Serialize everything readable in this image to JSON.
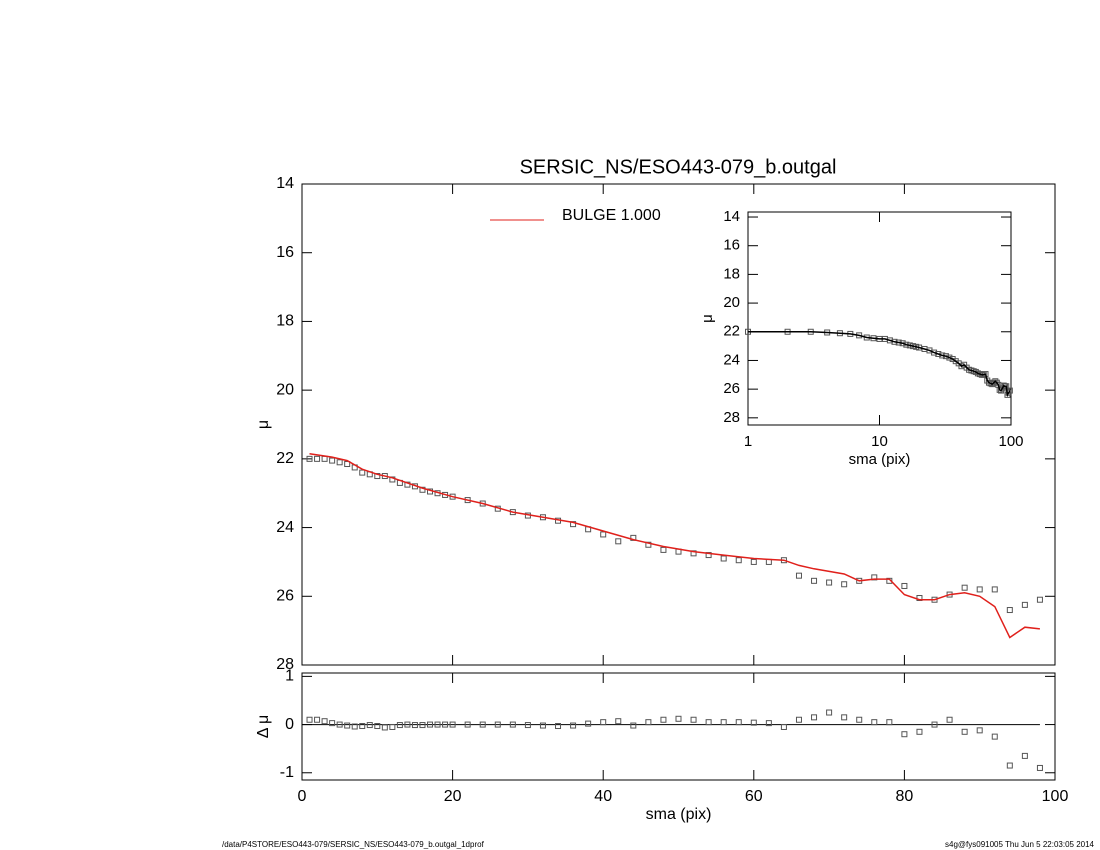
{
  "chart_data": [
    {
      "type": "scatter",
      "title": "SERSIC_NS/ESO443-079_b.outgal",
      "ylabel": "μ",
      "xlim": [
        0,
        100
      ],
      "ylim": [
        28,
        14
      ],
      "yticks": [
        14,
        16,
        18,
        20,
        22,
        24,
        26,
        28
      ],
      "legend": "top",
      "series": [
        {
          "color": "#555555",
          "style": "square",
          "x": [
            1,
            2,
            3,
            4,
            5,
            6,
            7,
            8,
            9,
            10,
            11,
            12,
            13,
            14,
            15,
            16,
            17,
            18,
            19,
            20,
            22,
            24,
            26,
            28,
            30,
            32,
            34,
            36,
            38,
            40,
            42,
            44,
            46,
            48,
            50,
            52,
            54,
            56,
            58,
            60,
            62,
            64,
            66,
            68,
            70,
            72,
            74,
            76,
            78,
            80,
            82,
            84,
            86,
            88,
            90,
            92,
            94,
            96,
            98
          ],
          "values": [
            22.0,
            22.0,
            22.0,
            22.05,
            22.1,
            22.15,
            22.25,
            22.4,
            22.45,
            22.5,
            22.5,
            22.6,
            22.7,
            22.75,
            22.8,
            22.9,
            22.95,
            23.0,
            23.05,
            23.1,
            23.2,
            23.3,
            23.45,
            23.55,
            23.65,
            23.7,
            23.8,
            23.9,
            24.05,
            24.2,
            24.4,
            24.3,
            24.5,
            24.65,
            24.7,
            24.75,
            24.8,
            24.9,
            24.95,
            25.0,
            25.0,
            24.95,
            25.4,
            25.55,
            25.6,
            25.65,
            25.55,
            25.45,
            25.55,
            25.7,
            26.05,
            26.1,
            25.95,
            25.75,
            25.8,
            25.8,
            26.4,
            26.25,
            26.1
          ]
        },
        {
          "name": "BULGE  1.000",
          "color": "#e0201b",
          "style": "line",
          "x": [
            1,
            4,
            6,
            8,
            10,
            12,
            16,
            20,
            24,
            28,
            32,
            36,
            40,
            44,
            48,
            52,
            56,
            60,
            64,
            66,
            68,
            72,
            74,
            76,
            78,
            80,
            82,
            84,
            86,
            88,
            90,
            92,
            94,
            96,
            98
          ],
          "values": [
            21.85,
            21.95,
            22.05,
            22.3,
            22.45,
            22.55,
            22.85,
            23.1,
            23.3,
            23.55,
            23.7,
            23.85,
            24.1,
            24.35,
            24.55,
            24.7,
            24.8,
            24.9,
            24.95,
            25.1,
            25.2,
            25.35,
            25.55,
            25.5,
            25.5,
            25.95,
            26.1,
            26.1,
            25.95,
            25.9,
            26.0,
            26.3,
            27.2,
            26.9,
            26.95
          ]
        }
      ]
    },
    {
      "type": "scatter",
      "xlabel": "sma (pix)",
      "ylabel": "Δ μ",
      "xlim": [
        0,
        100
      ],
      "xticks": [
        0,
        20,
        40,
        60,
        80,
        100
      ],
      "ylim": [
        -1.15,
        1.07
      ],
      "yticks": [
        -1,
        0,
        1
      ],
      "reference_line": 0,
      "series": [
        {
          "color": "#555555",
          "style": "square",
          "x": [
            1,
            2,
            3,
            4,
            5,
            6,
            7,
            8,
            9,
            10,
            11,
            12,
            13,
            14,
            15,
            16,
            17,
            18,
            19,
            20,
            22,
            24,
            26,
            28,
            30,
            32,
            34,
            36,
            38,
            40,
            42,
            44,
            46,
            48,
            50,
            52,
            54,
            56,
            58,
            60,
            62,
            64,
            66,
            68,
            70,
            72,
            74,
            76,
            78,
            80,
            82,
            84,
            86,
            88,
            90,
            92,
            94,
            96,
            98
          ],
          "values": [
            0.1,
            0.1,
            0.07,
            0.03,
            0,
            -0.02,
            -0.04,
            -0.03,
            -0.01,
            -0.03,
            -0.06,
            -0.05,
            -0.01,
            0,
            -0.01,
            -0.01,
            0,
            0,
            0,
            0,
            0,
            0,
            0,
            0,
            -0.01,
            -0.02,
            -0.03,
            -0.02,
            0.02,
            0.05,
            0.07,
            -0.02,
            0.05,
            0.1,
            0.12,
            0.1,
            0.05,
            0.05,
            0.05,
            0.04,
            0.03,
            -0.05,
            0.1,
            0.15,
            0.25,
            0.15,
            0.1,
            0.05,
            0.05,
            -0.2,
            -0.15,
            0,
            0.1,
            -0.15,
            -0.12,
            -0.25,
            -0.85,
            -0.65,
            -0.9
          ]
        }
      ]
    },
    {
      "type": "line",
      "xlabel": "sma (pix)",
      "ylabel": "μ",
      "xlog": true,
      "xlim": [
        1,
        100
      ],
      "xticks": [
        1,
        10,
        100
      ],
      "ylim": [
        28.5,
        13.65
      ],
      "yticks": [
        14,
        16,
        18,
        20,
        22,
        24,
        26,
        28
      ],
      "series": [
        {
          "color": "#555555",
          "style": "square",
          "x": [
            1,
            2,
            3,
            4,
            5,
            6,
            7,
            8,
            9,
            10,
            11,
            12,
            13,
            14,
            15,
            16,
            17,
            18,
            19,
            20,
            22,
            24,
            26,
            28,
            30,
            32,
            34,
            36,
            38,
            40,
            42,
            44,
            46,
            48,
            50,
            52,
            54,
            56,
            58,
            60,
            62,
            64,
            66,
            68,
            70,
            72,
            74,
            76,
            78,
            80,
            82,
            84,
            86,
            88,
            90,
            92,
            94,
            96,
            98
          ],
          "values": [
            22.0,
            22.0,
            22.0,
            22.05,
            22.1,
            22.15,
            22.25,
            22.4,
            22.45,
            22.5,
            22.5,
            22.6,
            22.7,
            22.75,
            22.8,
            22.9,
            22.95,
            23.0,
            23.05,
            23.1,
            23.2,
            23.3,
            23.45,
            23.55,
            23.65,
            23.7,
            23.8,
            23.9,
            24.05,
            24.2,
            24.4,
            24.3,
            24.5,
            24.65,
            24.7,
            24.75,
            24.8,
            24.9,
            24.95,
            25.0,
            25.0,
            24.95,
            25.4,
            25.55,
            25.6,
            25.65,
            25.55,
            25.45,
            25.55,
            25.7,
            26.05,
            26.1,
            25.95,
            25.75,
            25.8,
            25.8,
            26.4,
            26.25,
            26.1
          ]
        },
        {
          "color": "#000000",
          "style": "line",
          "x": [
            1,
            2,
            3,
            4,
            5,
            6,
            7,
            8,
            9,
            10,
            11,
            12,
            13,
            14,
            15,
            16,
            17,
            18,
            19,
            20,
            22,
            24,
            26,
            28,
            30,
            32,
            34,
            36,
            38,
            40,
            42,
            44,
            46,
            48,
            50,
            52,
            54,
            56,
            58,
            60,
            62,
            64,
            66,
            68,
            70,
            72,
            74,
            76,
            78,
            80,
            82,
            84,
            86,
            88,
            90,
            92,
            94,
            96,
            98
          ],
          "values": [
            22.0,
            22.0,
            22.0,
            22.05,
            22.1,
            22.15,
            22.25,
            22.4,
            22.45,
            22.5,
            22.5,
            22.6,
            22.7,
            22.75,
            22.8,
            22.9,
            22.95,
            23.0,
            23.05,
            23.1,
            23.2,
            23.3,
            23.45,
            23.55,
            23.65,
            23.7,
            23.8,
            23.9,
            24.05,
            24.2,
            24.4,
            24.3,
            24.5,
            24.65,
            24.7,
            24.75,
            24.8,
            24.9,
            24.95,
            25.0,
            25.0,
            24.95,
            25.4,
            25.55,
            25.6,
            25.65,
            25.55,
            25.45,
            25.55,
            25.7,
            26.05,
            26.1,
            25.95,
            25.75,
            25.8,
            25.8,
            26.4,
            26.25,
            26.1
          ]
        }
      ]
    }
  ],
  "footer": {
    "left": "/data/P4STORE/ESO443-079/SERSIC_NS/ESO443-079_b.outgal_1dprof",
    "right": "s4g@fys091005  Thu Jun  5 22:03:05 2014"
  }
}
